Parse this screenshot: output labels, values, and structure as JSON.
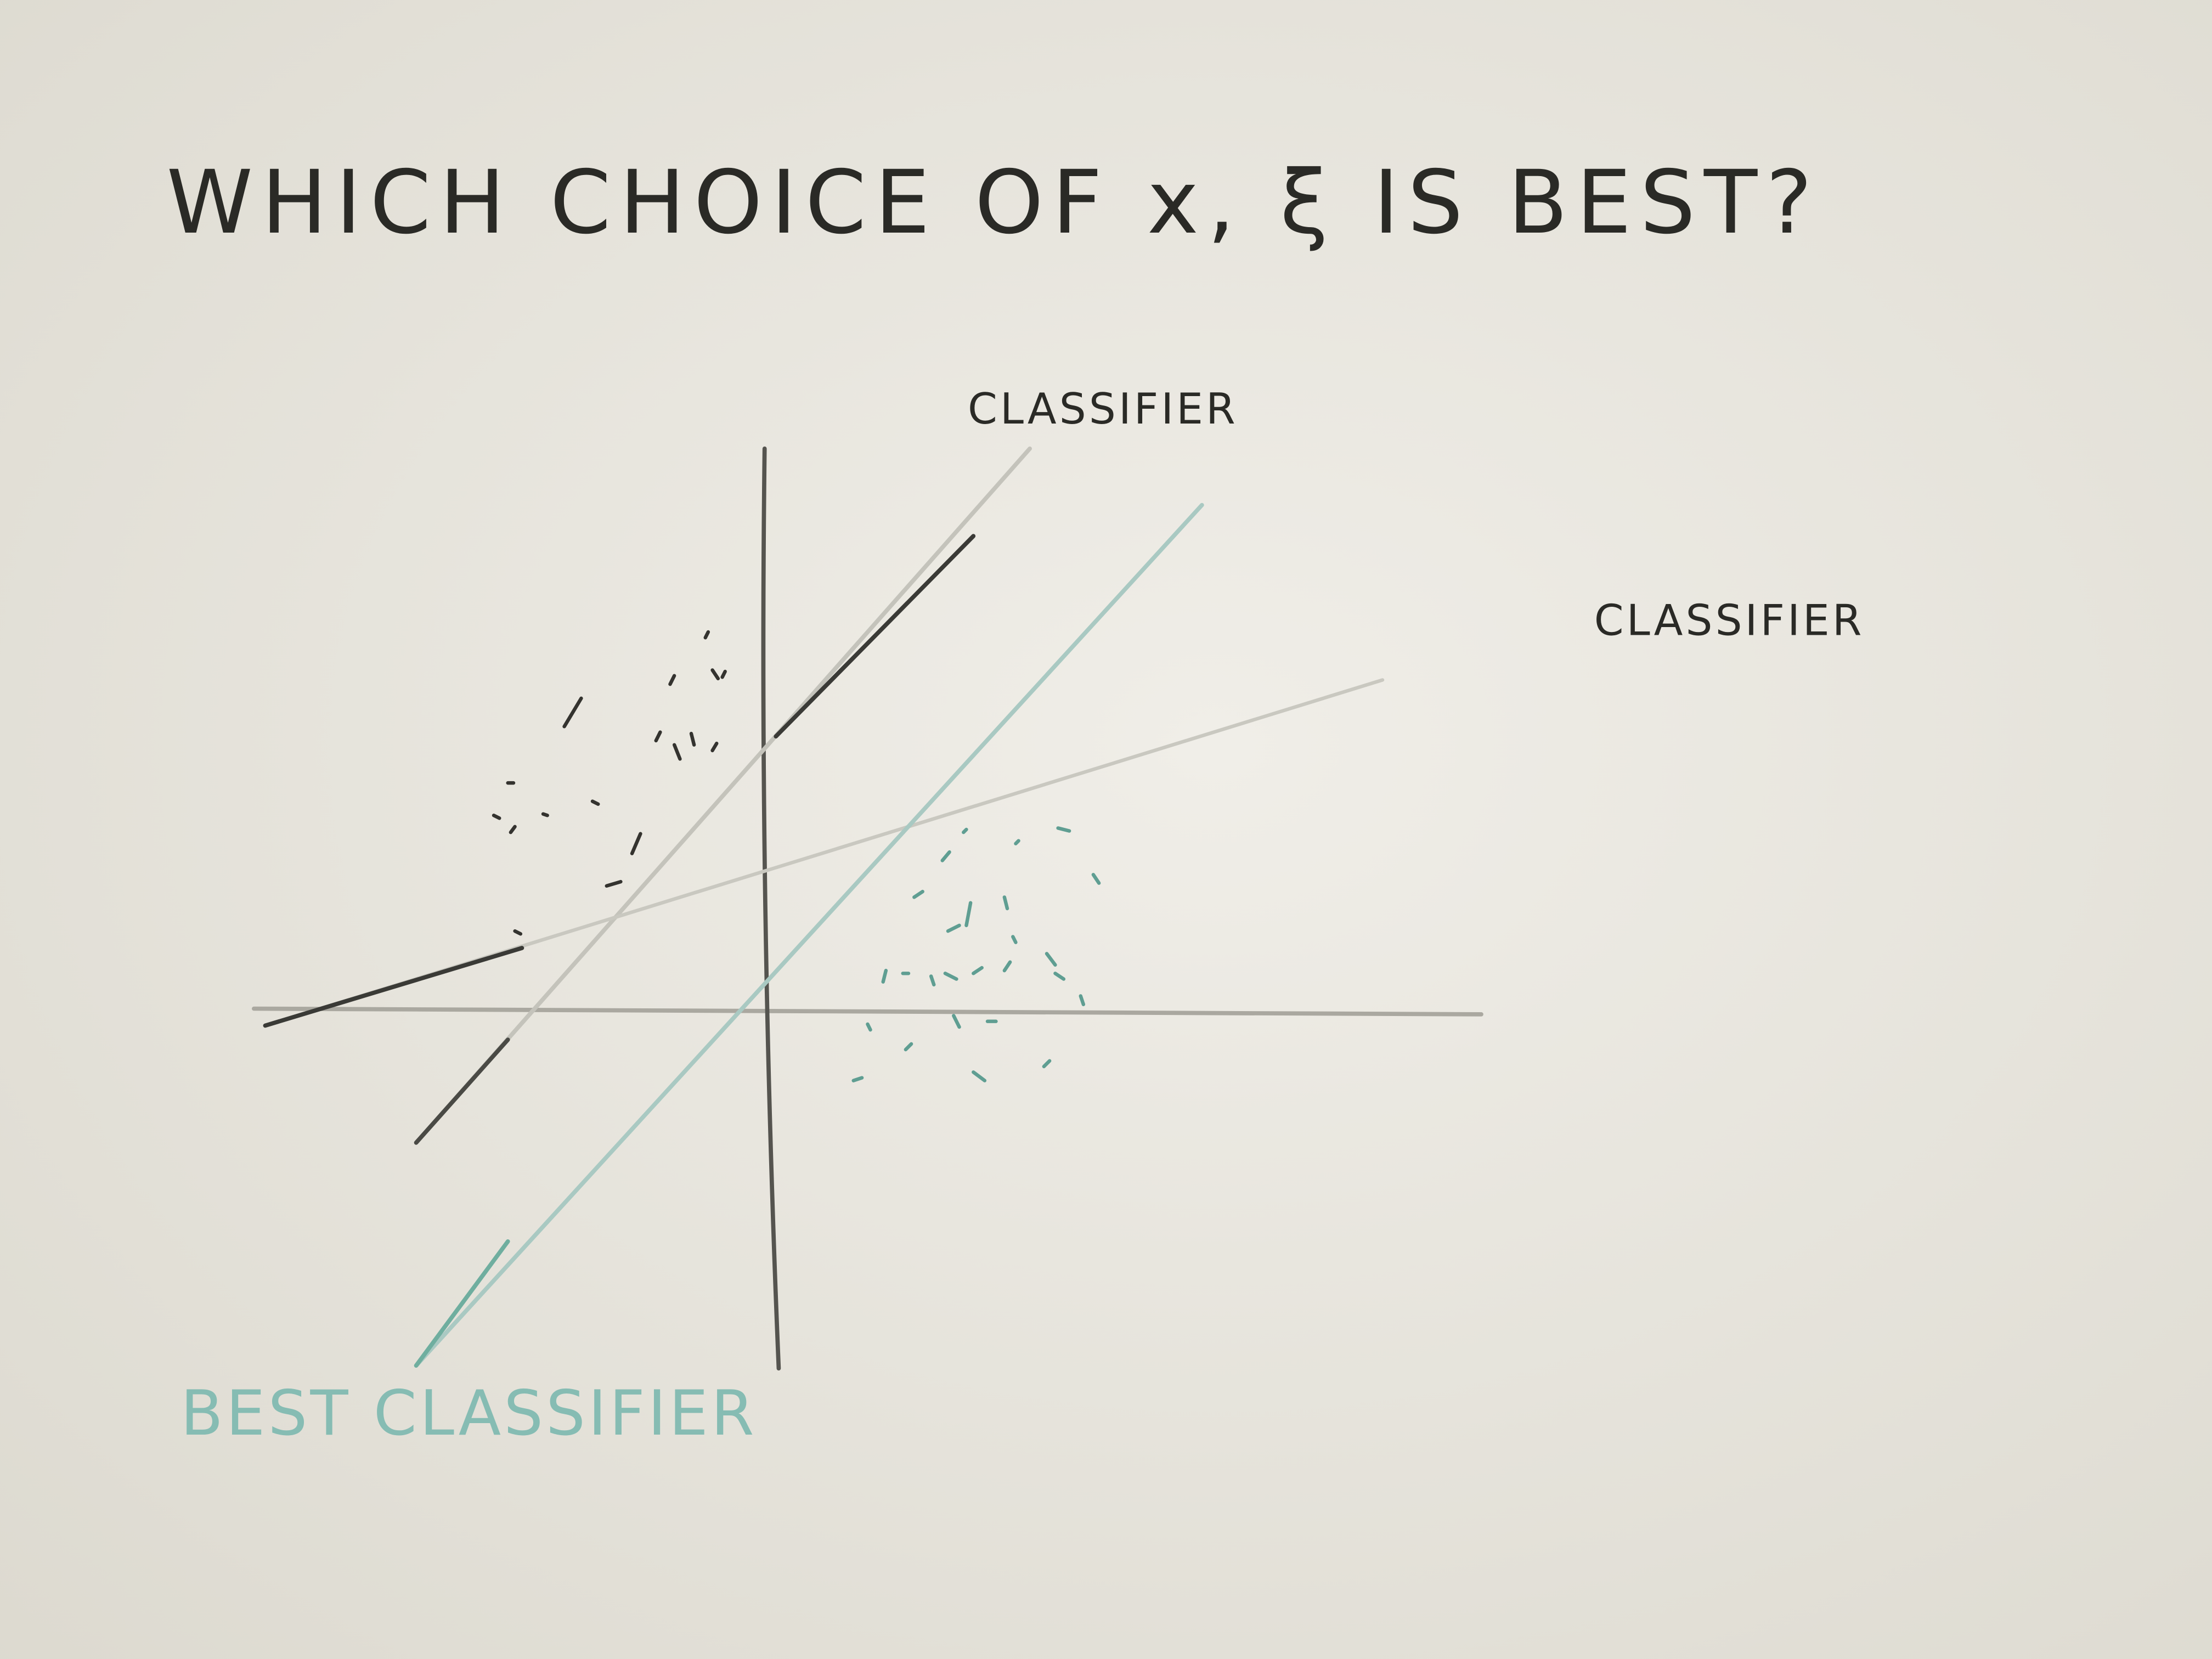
{
  "title": "WHICH CHOICE OF x, ξ IS BEST?",
  "labels": {
    "classifier_top": "CLASSIFIER",
    "classifier_right": "CLASSIFIER",
    "best_classifier": "BEST CLASSIFIER"
  }
}
